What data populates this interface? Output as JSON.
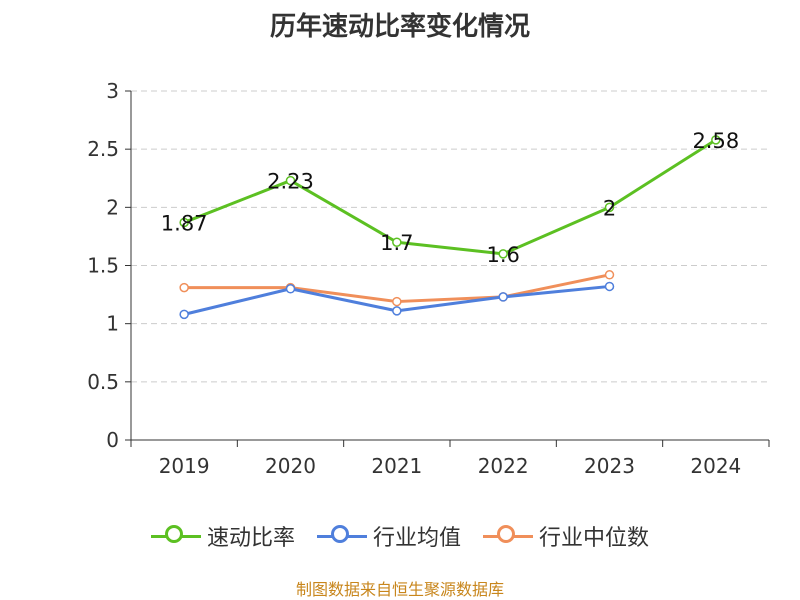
{
  "chart_data": {
    "type": "line",
    "title": "历年速动比率变化情况",
    "categories": [
      "2019",
      "2020",
      "2021",
      "2022",
      "2023",
      "2024"
    ],
    "yticks": [
      "0",
      "0.5",
      "1",
      "1.5",
      "2",
      "2.5",
      "3"
    ],
    "ylim": [
      0,
      3
    ],
    "grid": true,
    "legend_position": "bottom-center",
    "series": [
      {
        "name": "速动比率",
        "color": "#5cc022",
        "values": [
          1.87,
          2.23,
          1.7,
          1.6,
          2,
          2.58
        ],
        "labels": [
          "1.87",
          "2.23",
          "1.7",
          "1.6",
          "2",
          "2.58"
        ]
      },
      {
        "name": "行业均值",
        "color": "#4f7fdc",
        "values": [
          1.08,
          1.3,
          1.11,
          1.23,
          1.32,
          null
        ]
      },
      {
        "name": "行业中位数",
        "color": "#f08f5a",
        "values": [
          1.31,
          1.31,
          1.19,
          1.23,
          1.42,
          null
        ]
      }
    ]
  },
  "source_note": "制图数据来自恒生聚源数据库"
}
